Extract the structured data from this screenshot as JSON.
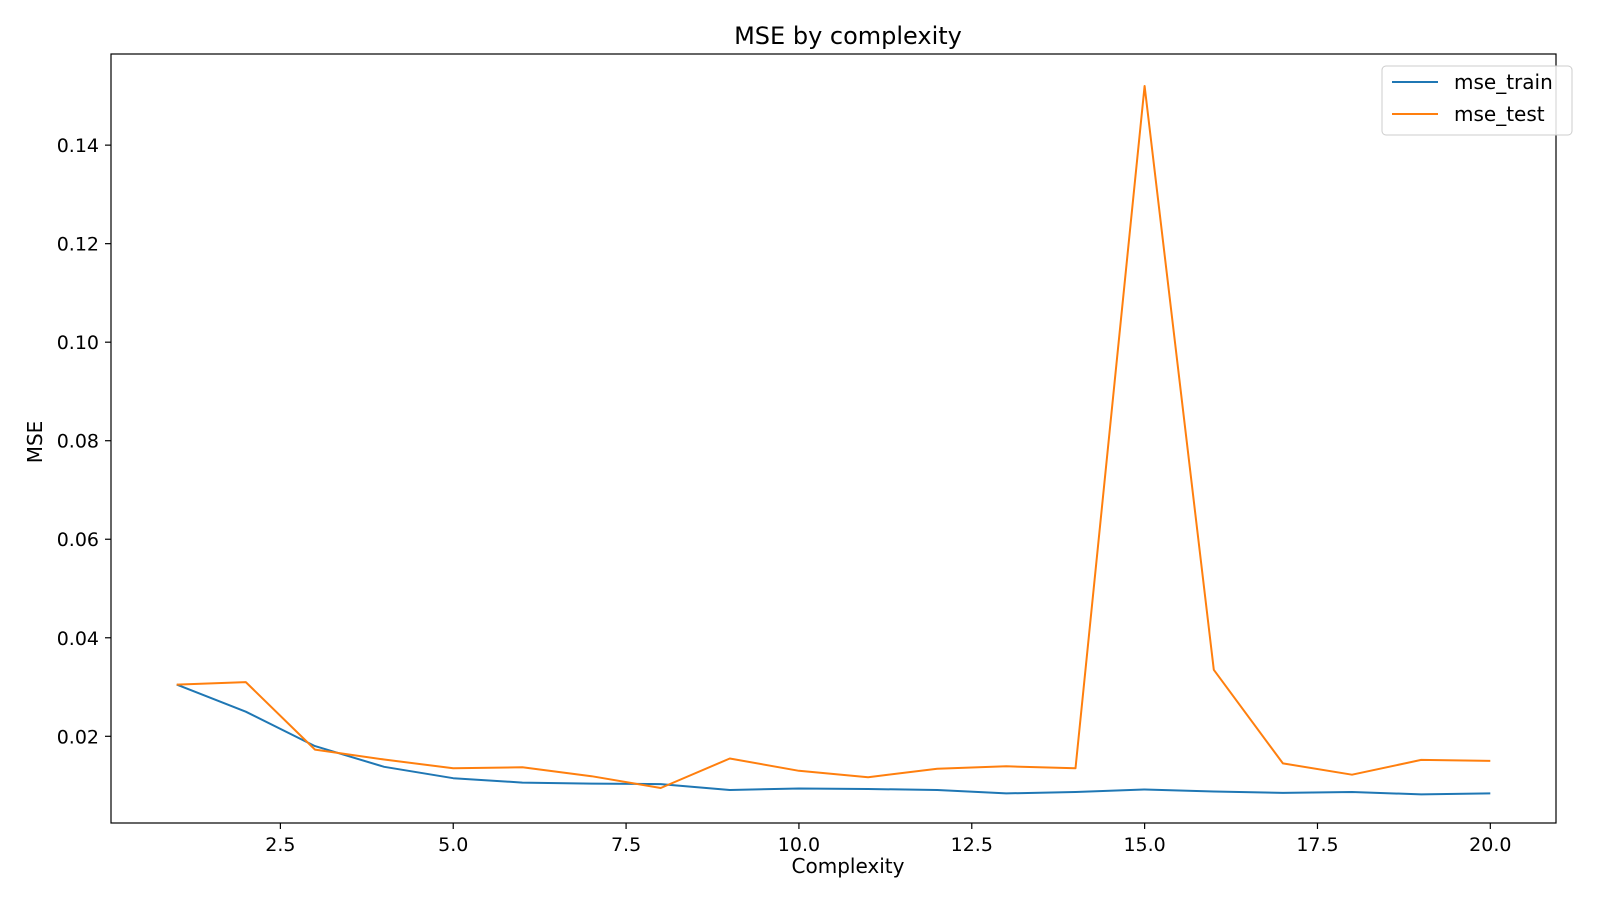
{
  "chart_data": {
    "type": "line",
    "title": "MSE by complexity",
    "xlabel": "Complexity",
    "ylabel": "MSE",
    "xlim": [
      0.05,
      20.95
    ],
    "ylim": [
      0.0024,
      0.1585
    ],
    "xticks": [
      2.5,
      5.0,
      7.5,
      10.0,
      12.5,
      15.0,
      17.5,
      20.0
    ],
    "xtick_labels": [
      "2.5",
      "5.0",
      "7.5",
      "10.0",
      "12.5",
      "15.0",
      "17.5",
      "20.0"
    ],
    "yticks": [
      0.02,
      0.04,
      0.06,
      0.08,
      0.1,
      0.12,
      0.14
    ],
    "ytick_labels": [
      "0.02",
      "0.04",
      "0.06",
      "0.08",
      "0.10",
      "0.12",
      "0.14"
    ],
    "grid": false,
    "legend_position": "top-right",
    "x": [
      1,
      2,
      3,
      4,
      5,
      6,
      7,
      8,
      9,
      10,
      11,
      12,
      13,
      14,
      15,
      16,
      17,
      18,
      19,
      20
    ],
    "series": [
      {
        "name": "mse_train",
        "color": "#1f77b4",
        "values": [
          0.0305,
          0.025,
          0.018,
          0.0138,
          0.0115,
          0.0106,
          0.0104,
          0.0103,
          0.0091,
          0.0094,
          0.0093,
          0.0091,
          0.0084,
          0.0087,
          0.0092,
          0.0088,
          0.0085,
          0.0087,
          0.0082,
          0.0084
        ]
      },
      {
        "name": "mse_test",
        "color": "#ff7f0e",
        "values": [
          0.0305,
          0.031,
          0.0173,
          0.0153,
          0.0135,
          0.0137,
          0.0119,
          0.0095,
          0.0155,
          0.013,
          0.0117,
          0.0134,
          0.0139,
          0.0135,
          0.152,
          0.0335,
          0.0145,
          0.0122,
          0.0152,
          0.015
        ]
      }
    ]
  }
}
